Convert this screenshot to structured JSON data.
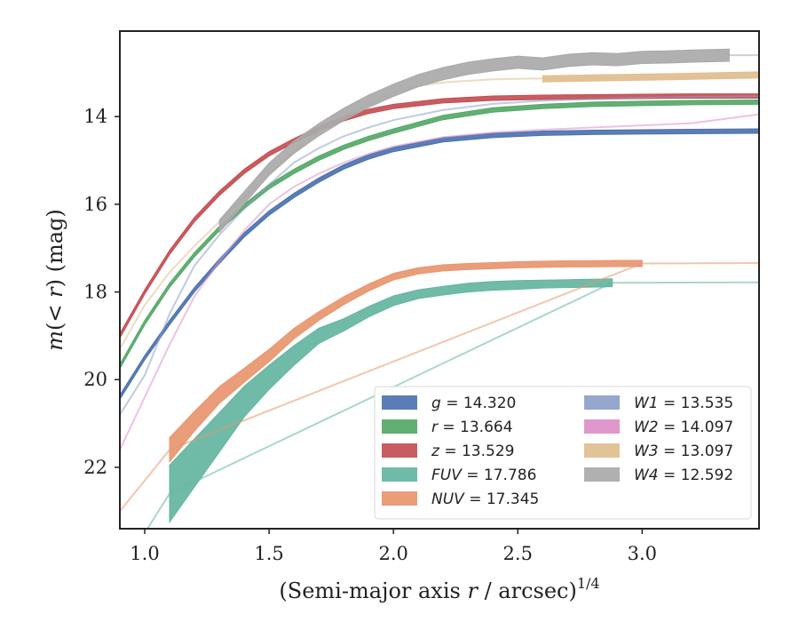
{
  "chart_data": {
    "type": "line",
    "title": "",
    "xlabel": "(Semi-major axis r / arcsec)",
    "xlabel_prefix": "(Semi-major axis ",
    "xlabel_var": "r",
    "xlabel_suffix": " / arcsec)",
    "xlabel_exp": "1/4",
    "ylabel": "m(< r) (mag)",
    "ylabel_m": "m",
    "ylabel_open": "(",
    "ylabel_lt": "< ",
    "ylabel_r": "r",
    "ylabel_close": ") (mag)",
    "xlim": [
      0.9,
      3.47
    ],
    "ylim": [
      23.4,
      12.05
    ],
    "y_inverted": true,
    "xticks": [
      1.0,
      1.5,
      2.0,
      2.5,
      3.0
    ],
    "xtick_labels": [
      "1.0",
      "1.5",
      "2.0",
      "2.5",
      "3.0"
    ],
    "yticks": [
      14,
      16,
      18,
      20,
      22
    ],
    "ytick_labels": [
      "14",
      "16",
      "18",
      "20",
      "22"
    ],
    "grid": false,
    "legend_position": "lower-right",
    "series": [
      {
        "name": "g = 14.320",
        "label_var": "g",
        "label_value": "= 14.320",
        "color": "#4c72b0",
        "band_x": [
          0.9,
          1.0,
          1.1,
          1.2,
          1.3,
          1.4,
          1.5,
          1.6,
          1.7,
          1.8,
          1.9,
          2.0,
          2.2,
          2.4,
          2.6,
          2.8,
          3.0,
          3.2,
          3.47
        ],
        "band_y": [
          20.4,
          19.5,
          18.7,
          17.95,
          17.3,
          16.7,
          16.2,
          15.8,
          15.45,
          15.15,
          14.92,
          14.75,
          14.53,
          14.43,
          14.38,
          14.36,
          14.35,
          14.34,
          14.33
        ],
        "band_width": 0.1,
        "faint_x": [],
        "faint_y": []
      },
      {
        "name": "r = 13.664",
        "label_var": "r",
        "label_value": "= 13.664",
        "color": "#55a868",
        "band_x": [
          0.9,
          1.0,
          1.1,
          1.2,
          1.3,
          1.4,
          1.5,
          1.6,
          1.7,
          1.8,
          1.9,
          2.0,
          2.2,
          2.4,
          2.6,
          2.8,
          3.0,
          3.2,
          3.47
        ],
        "band_y": [
          19.7,
          18.7,
          17.85,
          17.15,
          16.55,
          16.05,
          15.6,
          15.25,
          14.95,
          14.7,
          14.5,
          14.33,
          14.02,
          13.85,
          13.77,
          13.72,
          13.7,
          13.68,
          13.67
        ],
        "band_width": 0.1,
        "faint_x": [],
        "faint_y": []
      },
      {
        "name": "z = 13.529",
        "label_var": "z",
        "label_value": "= 13.529",
        "color": "#c44e52",
        "band_x": [
          0.9,
          1.0,
          1.1,
          1.2,
          1.3,
          1.4,
          1.5,
          1.6,
          1.7,
          1.8,
          1.9,
          2.0,
          2.2,
          2.4,
          2.6,
          2.8,
          3.0,
          3.2,
          3.47
        ],
        "band_y": [
          19.0,
          18.0,
          17.1,
          16.35,
          15.75,
          15.25,
          14.85,
          14.55,
          14.28,
          14.05,
          13.88,
          13.77,
          13.64,
          13.58,
          13.56,
          13.55,
          13.54,
          13.53,
          13.53
        ],
        "band_width": 0.1,
        "faint_x": [],
        "faint_y": []
      },
      {
        "name": "FUV = 17.786",
        "label_var": "FUV",
        "label_value": "= 17.786",
        "color": "#64b5a0",
        "band_x": [
          1.1,
          1.2,
          1.3,
          1.4,
          1.5,
          1.6,
          1.7,
          1.8,
          1.9,
          2.0,
          2.1,
          2.2,
          2.3,
          2.4,
          2.5,
          2.6,
          2.7,
          2.8,
          2.88
        ],
        "band_y": [
          22.6,
          21.9,
          21.2,
          20.5,
          19.95,
          19.45,
          19.0,
          18.75,
          18.45,
          18.2,
          18.05,
          17.97,
          17.9,
          17.86,
          17.84,
          17.82,
          17.81,
          17.8,
          17.79
        ],
        "band_width_list": [
          1.3,
          1.1,
          0.9,
          0.7,
          0.55,
          0.45,
          0.35,
          0.28,
          0.24,
          0.22,
          0.2,
          0.2,
          0.2,
          0.2,
          0.2,
          0.18,
          0.18,
          0.18,
          0.18
        ],
        "faint_x": [
          0.9,
          1.0,
          1.1,
          2.88,
          3.47
        ],
        "faint_y": [
          24.4,
          23.5,
          22.6,
          17.79,
          17.78
        ]
      },
      {
        "name": "NUV = 17.345",
        "label_var": "NUV",
        "label_value": "= 17.345",
        "color": "#e8956e",
        "band_x": [
          1.1,
          1.2,
          1.3,
          1.4,
          1.5,
          1.6,
          1.7,
          1.8,
          1.9,
          2.0,
          2.1,
          2.2,
          2.3,
          2.4,
          2.5,
          2.6,
          2.7,
          2.8,
          2.9,
          3.0
        ],
        "band_y": [
          21.6,
          20.95,
          20.35,
          19.9,
          19.45,
          18.95,
          18.55,
          18.2,
          17.9,
          17.65,
          17.52,
          17.45,
          17.42,
          17.4,
          17.38,
          17.37,
          17.36,
          17.36,
          17.35,
          17.35
        ],
        "band_width_list": [
          0.55,
          0.45,
          0.38,
          0.32,
          0.28,
          0.24,
          0.2,
          0.18,
          0.16,
          0.15,
          0.14,
          0.14,
          0.14,
          0.14,
          0.14,
          0.14,
          0.14,
          0.14,
          0.14,
          0.14
        ],
        "faint_x": [
          0.9,
          1.0,
          1.1,
          3.0,
          3.47
        ],
        "faint_y": [
          23.0,
          22.3,
          21.6,
          17.35,
          17.34
        ]
      },
      {
        "name": "W1 = 13.535",
        "label_var": "W1",
        "label_value": "= 13.535",
        "color": "#8c9fc8",
        "band_x": [],
        "band_y": [],
        "band_width": 0,
        "faint_x": [
          0.9,
          1.0,
          1.1,
          1.2,
          1.3,
          1.4,
          1.5,
          1.6,
          1.7,
          1.8,
          1.9,
          2.0,
          2.2,
          2.4,
          2.6,
          2.8,
          3.0,
          3.2,
          3.47
        ],
        "faint_y": [
          20.8,
          19.9,
          18.5,
          17.4,
          16.7,
          16.1,
          15.55,
          15.05,
          14.72,
          14.45,
          14.25,
          14.08,
          13.85,
          13.71,
          13.64,
          13.6,
          13.57,
          13.55,
          13.54
        ]
      },
      {
        "name": "W2 = 14.097",
        "label_var": "W2",
        "label_value": "= 14.097",
        "color": "#dd8fc8",
        "band_x": [],
        "band_y": [],
        "band_width": 0,
        "faint_x": [
          0.9,
          1.0,
          1.1,
          1.2,
          1.3,
          1.4,
          1.5,
          1.6,
          1.7,
          1.8,
          1.9,
          2.0,
          2.2,
          2.4,
          2.6,
          2.8,
          3.0,
          3.2,
          3.47
        ],
        "faint_y": [
          21.6,
          20.4,
          19.2,
          18.1,
          17.3,
          16.6,
          16.0,
          15.6,
          15.3,
          15.05,
          14.85,
          14.68,
          14.47,
          14.36,
          14.3,
          14.25,
          14.2,
          14.15,
          13.95
        ]
      },
      {
        "name": "W3 = 13.097",
        "label_var": "W3",
        "label_value": "= 13.097",
        "color": "#dfbd8e",
        "band_x": [],
        "band_y": [],
        "band_width": 0,
        "faint_x": [
          0.9,
          1.0,
          1.1,
          1.2,
          1.3,
          1.4,
          1.5,
          1.6,
          1.7,
          1.8,
          1.9,
          2.0,
          2.1,
          2.2,
          2.4,
          2.6,
          2.8,
          3.0,
          3.2,
          3.47
        ],
        "faint_y": [
          19.3,
          18.3,
          17.55,
          16.95,
          16.4,
          15.85,
          15.3,
          14.8,
          14.35,
          14.0,
          13.7,
          13.45,
          13.3,
          13.22,
          13.15,
          13.13,
          13.12,
          13.1,
          13.1,
          13.1
        ],
        "band2_x": [
          2.6,
          2.8,
          3.0,
          3.2,
          3.47
        ],
        "band2_y": [
          13.14,
          13.12,
          13.1,
          13.08,
          13.05
        ],
        "band2_width": 0.14
      },
      {
        "name": "W4 = 12.592",
        "label_var": "W4",
        "label_value": "= 12.592",
        "color": "#a9a9a9",
        "band_x": [
          1.3,
          1.4,
          1.5,
          1.6,
          1.7,
          1.8,
          1.9,
          2.0,
          2.1,
          2.2,
          2.3,
          2.4,
          2.5,
          2.6,
          2.7,
          2.8,
          2.9,
          3.0,
          3.1,
          3.2,
          3.35
        ],
        "band_y": [
          16.5,
          15.85,
          15.2,
          14.7,
          14.3,
          13.95,
          13.65,
          13.4,
          13.18,
          13.02,
          12.9,
          12.82,
          12.76,
          12.8,
          12.72,
          12.68,
          12.7,
          12.65,
          12.64,
          12.62,
          12.6
        ],
        "band_width": 0.28,
        "faint_x": [
          3.35,
          3.47
        ],
        "faint_y": [
          12.6,
          12.6
        ]
      }
    ]
  }
}
